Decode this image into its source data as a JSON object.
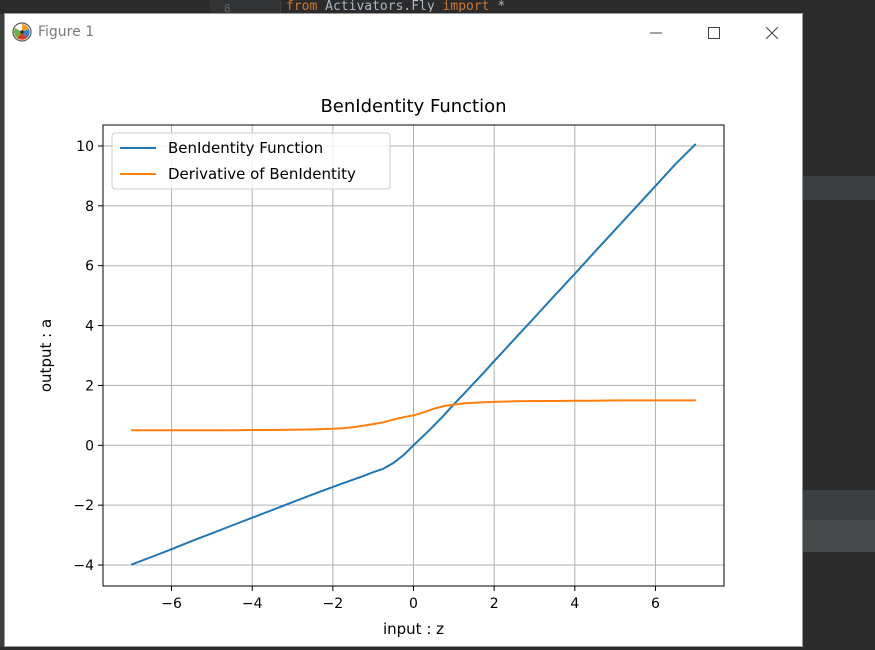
{
  "ide": {
    "line_number": "8",
    "code_from": "from",
    "code_module": " Activators.Fly ",
    "code_import": "import",
    "code_star": " *"
  },
  "window": {
    "title": "Figure 1",
    "app_icon": "matplotlib-icon",
    "controls": [
      "minimize-icon",
      "maximize-icon",
      "close-icon"
    ]
  },
  "chart_data": {
    "type": "line",
    "title": "BenIdentity Function",
    "xlabel": "input : z",
    "ylabel": "output : a",
    "xlim": [
      -7.7,
      7.7
    ],
    "ylim": [
      -4.7,
      10.7
    ],
    "xticks": [
      -6,
      -4,
      -2,
      0,
      2,
      4,
      6
    ],
    "yticks": [
      -4,
      -2,
      0,
      2,
      4,
      6,
      8,
      10
    ],
    "xtick_labels": [
      "−6",
      "−4",
      "−2",
      "0",
      "2",
      "4",
      "6"
    ],
    "ytick_labels": [
      "−4",
      "−2",
      "0",
      "2",
      "4",
      "6",
      "8",
      "10"
    ],
    "grid": true,
    "legend": "top-left",
    "x": [
      -7,
      -6.5,
      -6,
      -5.5,
      -5,
      -4.5,
      -4,
      -3.5,
      -3,
      -2.5,
      -2,
      -1.75,
      -1.5,
      -1.25,
      -1,
      -0.75,
      -0.5,
      -0.25,
      0,
      0.25,
      0.5,
      0.75,
      1,
      1.25,
      1.5,
      1.75,
      2,
      2.5,
      3,
      3.5,
      4,
      4.5,
      5,
      5.5,
      6,
      6.5,
      7
    ],
    "series": [
      {
        "name": "BenIdentity Function",
        "color": "#1f77b4",
        "values": [
          -3.99,
          -3.73,
          -3.47,
          -3.2,
          -2.94,
          -2.68,
          -2.42,
          -2.16,
          -1.9,
          -1.64,
          -1.39,
          -1.27,
          -1.15,
          -1.03,
          -0.9,
          -0.78,
          -0.59,
          -0.33,
          0.0,
          0.32,
          0.65,
          1.0,
          1.37,
          1.72,
          2.08,
          2.44,
          2.81,
          3.54,
          4.27,
          5.0,
          5.73,
          6.47,
          7.2,
          7.93,
          8.66,
          9.4,
          10.07
        ]
      },
      {
        "name": "Derivative of BenIdentity",
        "color": "#ff7f0e",
        "values": [
          0.5,
          0.5,
          0.5,
          0.5,
          0.5,
          0.5,
          0.51,
          0.51,
          0.52,
          0.53,
          0.55,
          0.57,
          0.6,
          0.65,
          0.71,
          0.77,
          0.86,
          0.94,
          1.0,
          1.1,
          1.22,
          1.31,
          1.36,
          1.4,
          1.42,
          1.44,
          1.45,
          1.47,
          1.48,
          1.48,
          1.49,
          1.49,
          1.5,
          1.5,
          1.5,
          1.5,
          1.5
        ]
      }
    ]
  }
}
